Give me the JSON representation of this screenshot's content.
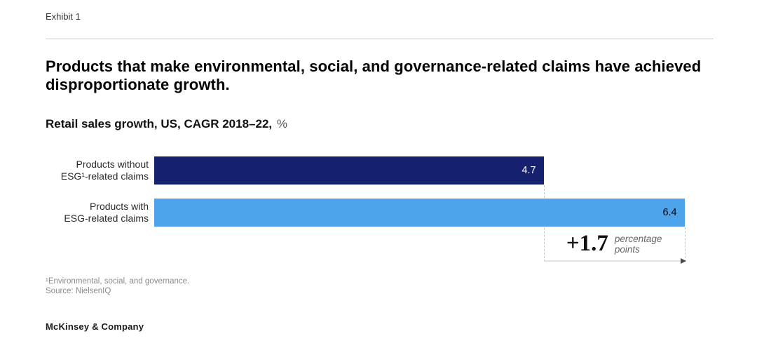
{
  "exhibit_label": "Exhibit 1",
  "title": "Products that make environmental, social, and governance-related claims have achieved disproportionate growth.",
  "subtitle": {
    "bold": "Retail sales growth, US, CAGR 2018–22,",
    "unit": "%"
  },
  "chart_data": {
    "type": "bar",
    "orientation": "horizontal",
    "categories": [
      "Products without ESG¹-related claims",
      "Products with ESG-related claims"
    ],
    "values": [
      4.7,
      6.4
    ],
    "value_labels": [
      "4.7",
      "6.4"
    ],
    "bar_colors": [
      "#15206E",
      "#4DA4EB"
    ],
    "value_label_colors": [
      "#ffffff",
      "#000000"
    ],
    "xlim": [
      0,
      6.75
    ],
    "grid": false,
    "legend": false,
    "annotation": {
      "delta": "+1.7",
      "unit_line1": "percentage",
      "unit_line2": "points"
    }
  },
  "labels": {
    "bar1_line1": "Products without",
    "bar1_line2": "ESG¹-related claims",
    "bar2_line1": "Products with",
    "bar2_line2": "ESG-related claims"
  },
  "footnotes": [
    "¹Environmental, social, and governance.",
    "Source: NielsenIQ"
  ],
  "brand": "McKinsey & Company"
}
